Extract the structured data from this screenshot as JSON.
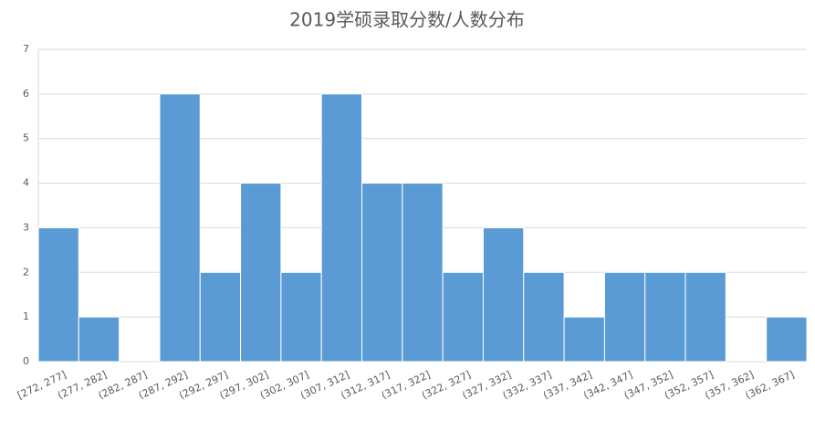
{
  "chart_data": {
    "type": "bar",
    "title": "2019学硕录取分数/人数分布",
    "categories": [
      "[272, 277]",
      "(277, 282]",
      "(282, 287]",
      "(287, 292]",
      "(292, 297]",
      "(297, 302]",
      "(302, 307]",
      "(307, 312]",
      "(312, 317]",
      "(317, 322]",
      "(322, 327]",
      "(327, 332]",
      "(332, 337]",
      "(337, 342]",
      "(342, 347]",
      "(347, 352]",
      "(352, 357]",
      "(357, 362]",
      "(362, 367]"
    ],
    "values": [
      3,
      1,
      0,
      6,
      2,
      4,
      2,
      6,
      4,
      4,
      2,
      3,
      2,
      1,
      2,
      2,
      2,
      0,
      1
    ],
    "color": "#5b9bd5",
    "ylim": [
      0,
      7
    ],
    "yticks": [
      0,
      1,
      2,
      3,
      4,
      5,
      6,
      7
    ],
    "grid": true
  }
}
